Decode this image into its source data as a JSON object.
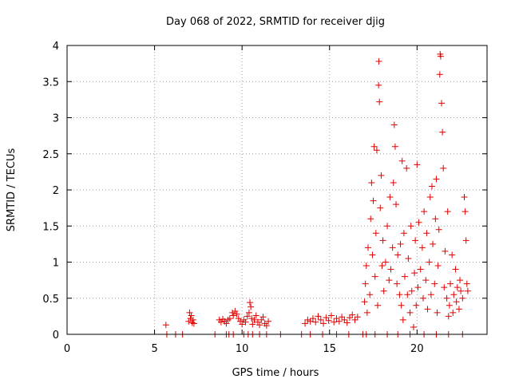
{
  "chart_data": {
    "type": "scatter",
    "title": "Day 068 of 2022, SRMTID for receiver djig",
    "xlabel": "GPS time / hours",
    "ylabel": "SRMTID / TECUs",
    "xlim": [
      0,
      24
    ],
    "ylim": [
      0,
      4
    ],
    "grid": true,
    "x_ticks": [
      0,
      5,
      10,
      15,
      20
    ],
    "x_tick_labels": [
      "0",
      "5",
      "10",
      "15",
      "20"
    ],
    "y_ticks": [
      0,
      0.5,
      1,
      1.5,
      2,
      2.5,
      3,
      3.5,
      4
    ],
    "y_tick_labels": [
      "0",
      "0.5",
      "1",
      "1.5",
      "2",
      "2.5",
      "3",
      "3.5",
      "4"
    ],
    "marker": "+",
    "marker_color": "#e00000",
    "series": [
      {
        "name": "SRMTID",
        "points": [
          [
            5.65,
            0.13
          ],
          [
            5.7,
            0.0
          ],
          [
            6.2,
            0.0
          ],
          [
            6.6,
            0.0
          ],
          [
            6.95,
            0.18
          ],
          [
            7.0,
            0.3
          ],
          [
            7.05,
            0.22
          ],
          [
            7.1,
            0.26
          ],
          [
            7.15,
            0.16
          ],
          [
            7.2,
            0.2
          ],
          [
            7.25,
            0.15
          ],
          [
            8.45,
            0.0
          ],
          [
            8.7,
            0.2
          ],
          [
            8.8,
            0.17
          ],
          [
            8.9,
            0.21
          ],
          [
            9.0,
            0.18
          ],
          [
            9.1,
            0.15
          ],
          [
            9.2,
            0.2
          ],
          [
            9.3,
            0.22
          ],
          [
            9.45,
            0.3
          ],
          [
            9.5,
            0.26
          ],
          [
            9.6,
            0.32
          ],
          [
            9.7,
            0.28
          ],
          [
            9.8,
            0.22
          ],
          [
            9.9,
            0.18
          ],
          [
            10.0,
            0.14
          ],
          [
            10.1,
            0.2
          ],
          [
            10.2,
            0.17
          ],
          [
            10.3,
            0.25
          ],
          [
            10.4,
            0.3
          ],
          [
            10.45,
            0.44
          ],
          [
            10.5,
            0.38
          ],
          [
            10.55,
            0.22
          ],
          [
            10.6,
            0.14
          ],
          [
            10.7,
            0.2
          ],
          [
            10.8,
            0.26
          ],
          [
            10.9,
            0.17
          ],
          [
            11.0,
            0.13
          ],
          [
            11.1,
            0.2
          ],
          [
            11.2,
            0.24
          ],
          [
            11.3,
            0.15
          ],
          [
            11.4,
            0.12
          ],
          [
            11.5,
            0.18
          ],
          [
            9.1,
            0.0
          ],
          [
            9.25,
            0.0
          ],
          [
            9.5,
            0.0
          ],
          [
            10.1,
            0.0
          ],
          [
            10.35,
            0.0
          ],
          [
            10.6,
            0.0
          ],
          [
            11.0,
            0.0
          ],
          [
            11.4,
            0.0
          ],
          [
            12.2,
            0.0
          ],
          [
            13.4,
            0.0
          ],
          [
            13.9,
            0.0
          ],
          [
            14.6,
            0.0
          ],
          [
            15.4,
            0.0
          ],
          [
            16.1,
            0.0
          ],
          [
            13.6,
            0.15
          ],
          [
            13.75,
            0.2
          ],
          [
            13.9,
            0.18
          ],
          [
            14.05,
            0.22
          ],
          [
            14.2,
            0.17
          ],
          [
            14.35,
            0.25
          ],
          [
            14.5,
            0.2
          ],
          [
            14.65,
            0.15
          ],
          [
            14.8,
            0.23
          ],
          [
            14.95,
            0.19
          ],
          [
            15.1,
            0.26
          ],
          [
            15.25,
            0.17
          ],
          [
            15.4,
            0.22
          ],
          [
            15.55,
            0.18
          ],
          [
            15.7,
            0.24
          ],
          [
            15.85,
            0.2
          ],
          [
            16.0,
            0.16
          ],
          [
            16.15,
            0.23
          ],
          [
            16.3,
            0.27
          ],
          [
            16.45,
            0.2
          ],
          [
            16.6,
            0.24
          ],
          [
            16.9,
            0.0
          ],
          [
            17.0,
            0.45
          ],
          [
            17.05,
            0.7
          ],
          [
            17.1,
            0.95
          ],
          [
            17.15,
            0.3
          ],
          [
            17.2,
            1.2
          ],
          [
            17.3,
            0.55
          ],
          [
            17.35,
            1.6
          ],
          [
            17.4,
            2.1
          ],
          [
            17.45,
            1.1
          ],
          [
            17.5,
            1.85
          ],
          [
            17.55,
            2.6
          ],
          [
            17.6,
            0.8
          ],
          [
            17.65,
            1.4
          ],
          [
            17.7,
            2.55
          ],
          [
            17.75,
            0.4
          ],
          [
            17.8,
            3.45
          ],
          [
            17.82,
            3.78
          ],
          [
            17.85,
            3.22
          ],
          [
            17.9,
            1.75
          ],
          [
            17.95,
            2.2
          ],
          [
            18.0,
            0.95
          ],
          [
            18.05,
            1.3
          ],
          [
            18.1,
            0.6
          ],
          [
            18.2,
            1.0
          ],
          [
            18.3,
            1.5
          ],
          [
            18.4,
            0.75
          ],
          [
            18.45,
            1.9
          ],
          [
            18.5,
            0.9
          ],
          [
            18.6,
            1.2
          ],
          [
            18.65,
            2.1
          ],
          [
            18.7,
            2.9
          ],
          [
            18.75,
            2.6
          ],
          [
            18.8,
            1.8
          ],
          [
            18.85,
            0.7
          ],
          [
            18.9,
            1.1
          ],
          [
            19.0,
            0.55
          ],
          [
            19.05,
            1.25
          ],
          [
            19.1,
            0.4
          ],
          [
            19.15,
            2.4
          ],
          [
            19.2,
            0.2
          ],
          [
            19.25,
            1.4
          ],
          [
            19.3,
            0.8
          ],
          [
            19.4,
            2.3
          ],
          [
            19.45,
            0.55
          ],
          [
            19.5,
            1.05
          ],
          [
            19.6,
            0.3
          ],
          [
            19.65,
            1.5
          ],
          [
            19.7,
            0.6
          ],
          [
            19.8,
            0.1
          ],
          [
            19.85,
            0.85
          ],
          [
            19.9,
            1.3
          ],
          [
            19.95,
            0.4
          ],
          [
            20.0,
            2.35
          ],
          [
            20.05,
            0.65
          ],
          [
            20.1,
            1.55
          ],
          [
            20.2,
            0.9
          ],
          [
            20.3,
            1.2
          ],
          [
            20.35,
            0.5
          ],
          [
            20.4,
            1.7
          ],
          [
            20.5,
            0.75
          ],
          [
            20.55,
            1.4
          ],
          [
            20.6,
            0.35
          ],
          [
            20.7,
            1.0
          ],
          [
            20.75,
            1.9
          ],
          [
            20.8,
            0.55
          ],
          [
            20.85,
            2.05
          ],
          [
            20.9,
            1.25
          ],
          [
            21.0,
            0.7
          ],
          [
            21.05,
            1.6
          ],
          [
            21.1,
            2.15
          ],
          [
            21.15,
            0.3
          ],
          [
            21.2,
            0.95
          ],
          [
            21.25,
            1.45
          ],
          [
            21.3,
            3.6
          ],
          [
            21.32,
            3.88
          ],
          [
            21.35,
            3.85
          ],
          [
            21.4,
            3.2
          ],
          [
            21.45,
            2.8
          ],
          [
            21.5,
            2.3
          ],
          [
            21.55,
            0.65
          ],
          [
            21.6,
            1.15
          ],
          [
            21.7,
            0.5
          ],
          [
            21.75,
            1.7
          ],
          [
            21.8,
            0.25
          ],
          [
            21.85,
            0.4
          ],
          [
            21.9,
            0.7
          ],
          [
            22.0,
            1.1
          ],
          [
            22.05,
            0.3
          ],
          [
            22.1,
            0.55
          ],
          [
            22.2,
            0.9
          ],
          [
            22.25,
            0.45
          ],
          [
            22.3,
            0.65
          ],
          [
            22.4,
            0.35
          ],
          [
            22.45,
            0.75
          ],
          [
            22.5,
            0.6
          ],
          [
            22.6,
            0.5
          ],
          [
            22.7,
            1.9
          ],
          [
            22.75,
            1.7
          ],
          [
            22.8,
            1.3
          ],
          [
            22.85,
            0.7
          ],
          [
            22.9,
            0.6
          ],
          [
            17.1,
            0.0
          ],
          [
            17.6,
            0.0
          ],
          [
            18.3,
            0.0
          ],
          [
            18.9,
            0.0
          ],
          [
            19.6,
            0.0
          ],
          [
            20.4,
            0.0
          ],
          [
            21.1,
            0.0
          ],
          [
            21.8,
            0.0
          ],
          [
            22.6,
            0.0
          ]
        ]
      }
    ]
  }
}
